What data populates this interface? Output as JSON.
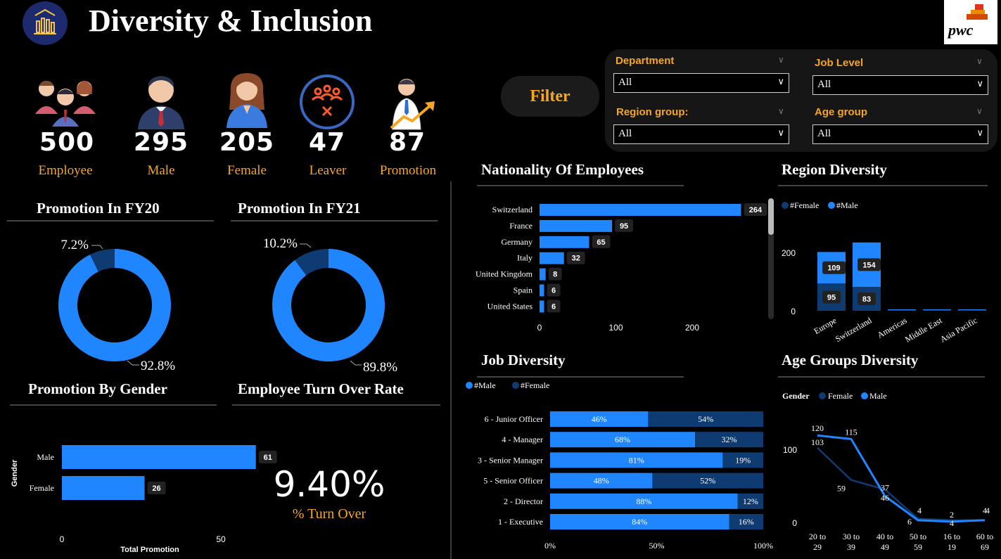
{
  "header": {
    "title": "Diversity & Inclusion",
    "logo_text": "pwc"
  },
  "kpis": [
    {
      "value": "500",
      "label": "Employee"
    },
    {
      "value": "295",
      "label": "Male"
    },
    {
      "value": "205",
      "label": "Female"
    },
    {
      "value": "47",
      "label": "Leaver"
    },
    {
      "value": "87",
      "label": "Promotion"
    }
  ],
  "filter_button": "Filter",
  "slicers": {
    "department": {
      "label": "Department",
      "value": "All"
    },
    "job_level": {
      "label": "Job Level",
      "value": "All"
    },
    "region_group": {
      "label": "Region group:",
      "value": "All"
    },
    "age_group": {
      "label": "Age group",
      "value": "All"
    }
  },
  "sections": {
    "promo_fy20": "Promotion In FY20",
    "promo_fy21": "Promotion In FY21",
    "promo_gender": "Promotion By Gender",
    "turnover": "Employee Turn Over Rate",
    "nationality": "Nationality Of Employees",
    "region": "Region Diversity",
    "job": "Job Diversity",
    "age": "Age Groups Diversity"
  },
  "turnover": {
    "value": "9.40%",
    "label": "% Turn Over"
  },
  "colors": {
    "accent": "#f5a623",
    "blue": "#1f86ff",
    "dark_blue": "#0f3b73",
    "background": "#000000"
  },
  "chart_data": [
    {
      "id": "fy20",
      "type": "pie",
      "title": "Promotion In FY20",
      "slices": [
        {
          "value": 92.8,
          "label": "92.8%"
        },
        {
          "value": 7.2,
          "label": "7.2%"
        }
      ]
    },
    {
      "id": "fy21",
      "type": "pie",
      "title": "Promotion In FY21",
      "slices": [
        {
          "value": 89.8,
          "label": "89.8%"
        },
        {
          "value": 10.2,
          "label": "10.2%"
        }
      ]
    },
    {
      "id": "gender",
      "type": "bar",
      "title": "Promotion By Gender",
      "xlabel": "Total Promotion",
      "ylabel": "Gender",
      "categories": [
        "Male",
        "Female"
      ],
      "values": [
        61,
        26
      ],
      "ticks": [
        "0",
        "50"
      ]
    },
    {
      "id": "nationality",
      "type": "bar",
      "title": "Nationality Of Employees",
      "categories": [
        "Switzerland",
        "France",
        "Germany",
        "Italy",
        "United Kingdom",
        "Spain",
        "United States"
      ],
      "values": [
        264,
        95,
        65,
        32,
        8,
        6,
        6
      ],
      "ticks": [
        "0",
        "100",
        "200"
      ]
    },
    {
      "id": "region",
      "type": "bar",
      "title": "Region Diversity",
      "categories": [
        "Europe",
        "Switzerland",
        "Americas",
        "Middle East",
        "Asia Pacific"
      ],
      "legend": [
        "#Female",
        "#Male"
      ],
      "series": [
        {
          "name": "#Female",
          "values": [
            95,
            83,
            0,
            0,
            0
          ]
        },
        {
          "name": "#Male",
          "values": [
            109,
            154,
            0,
            0,
            0
          ]
        }
      ],
      "ticks": [
        "0",
        "200"
      ]
    },
    {
      "id": "job",
      "type": "bar",
      "title": "Job Diversity",
      "legend": [
        "#Male",
        "#Female"
      ],
      "categories": [
        "6 - Junior Officer",
        "4 - Manager",
        "3 - Senior Manager",
        "5 - Senior Officer",
        "2 - Director",
        "1 - Executive"
      ],
      "series": [
        {
          "name": "#Male",
          "values": [
            46,
            68,
            81,
            48,
            88,
            84
          ]
        },
        {
          "name": "#Female",
          "values": [
            54,
            32,
            19,
            52,
            12,
            16
          ]
        }
      ],
      "ticks": [
        "0%",
        "50%",
        "100%"
      ]
    },
    {
      "id": "age",
      "type": "line",
      "title": "Age Groups Diversity",
      "legend_title": "Gender",
      "legend": [
        "Female",
        "Male"
      ],
      "categories": [
        "20 to 29",
        "30 to 39",
        "40 to 49",
        "50 to 59",
        "16 to 19",
        "60 to 69"
      ],
      "series": [
        {
          "name": "Female",
          "values": [
            103,
            59,
            46,
            6,
            4,
            4
          ]
        },
        {
          "name": "Male",
          "values": [
            120,
            115,
            37,
            4,
            2,
            4
          ]
        }
      ],
      "ticks": [
        "0",
        "100"
      ]
    }
  ]
}
